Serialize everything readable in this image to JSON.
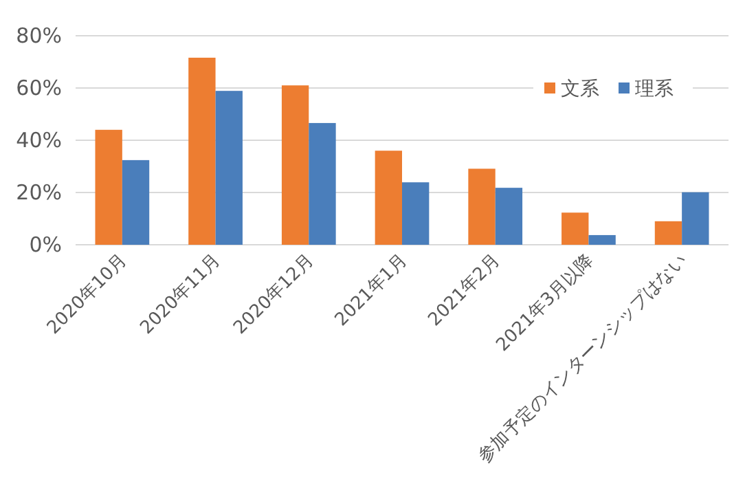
{
  "chart_data": {
    "type": "bar",
    "categories": [
      "2020年10月",
      "2020年11月",
      "2020年12月",
      "2021年1月",
      "2021年2月",
      "2021年3月以降",
      "参加予定のインターンシップはない"
    ],
    "series": [
      {
        "name": "文系",
        "color": "#ed7d31",
        "values": [
          44,
          71.6,
          61,
          36,
          29.1,
          12.3,
          9
        ]
      },
      {
        "name": "理系",
        "color": "#4a7ebb",
        "values": [
          32.4,
          58.9,
          46.6,
          23.9,
          21.8,
          3.7,
          20.1
        ]
      }
    ],
    "ylim": [
      0,
      80
    ],
    "yticks": [
      {
        "value": 0,
        "label": "0%"
      },
      {
        "value": 20,
        "label": "20%"
      },
      {
        "value": 40,
        "label": "40%"
      },
      {
        "value": 60,
        "label": "60%"
      },
      {
        "value": 80,
        "label": "80%"
      }
    ],
    "grid": "y",
    "legend": "top right"
  }
}
